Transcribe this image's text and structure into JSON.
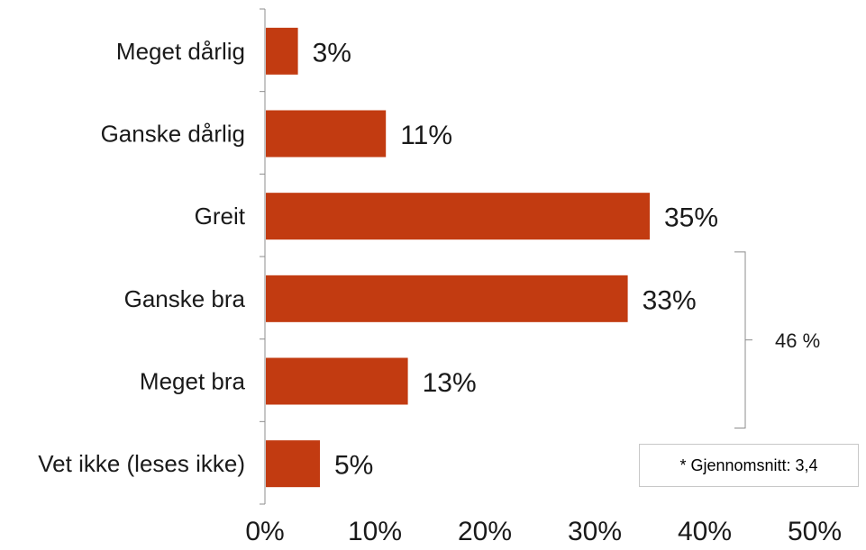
{
  "chart_data": {
    "type": "bar",
    "orientation": "horizontal",
    "categories": [
      "Meget dårlig",
      "Ganske dårlig",
      "Greit",
      "Ganske bra",
      "Meget bra",
      "Vet ikke (leses ikke)"
    ],
    "values": [
      3,
      11,
      35,
      33,
      13,
      5
    ],
    "value_labels": [
      "3%",
      "11%",
      "35%",
      "33%",
      "13%",
      "5%"
    ],
    "x_ticks": [
      "0%",
      "10%",
      "20%",
      "30%",
      "40%",
      "50%"
    ],
    "xlim": [
      0,
      50
    ],
    "bar_color": "#c23b11",
    "grid": false,
    "bracket": {
      "label": "46 %",
      "spans": [
        "Ganske bra",
        "Meget bra"
      ]
    },
    "note": "* Gjennomsnitt: 3,4"
  }
}
